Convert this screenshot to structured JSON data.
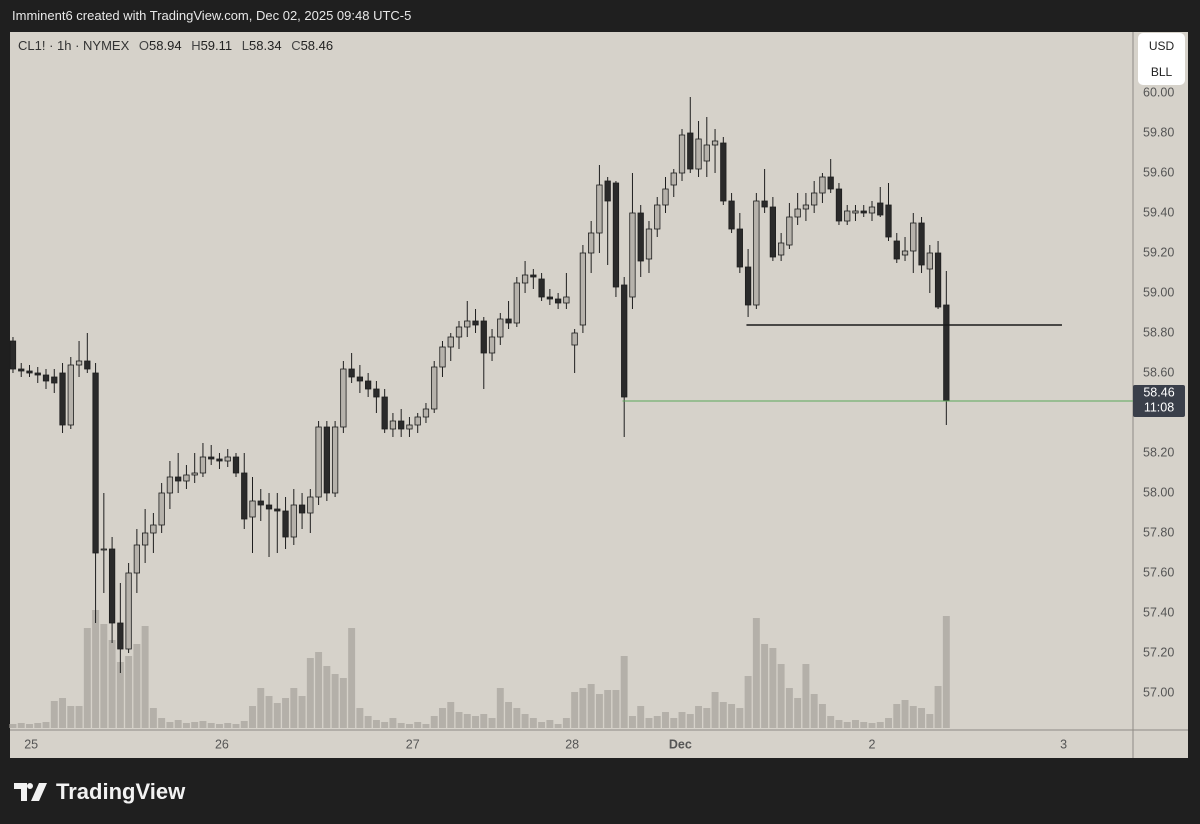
{
  "header": {
    "text": "Imminent6 created with TradingView.com, Dec 02, 2025 09:48 UTC-5"
  },
  "footer": {
    "logo": "TradingView"
  },
  "chart_data": {
    "type": "candlestick",
    "symbol": "CL1! · 1h · NYMEX",
    "legend": {
      "labels": [
        "O",
        "H",
        "L",
        "C"
      ],
      "values": [
        58.94,
        59.11,
        58.34,
        58.46
      ]
    },
    "currency": "USD",
    "unit": "BLL",
    "countdown": "11:08",
    "candles": [
      [
        58.76,
        58.78,
        58.6,
        58.62
      ],
      [
        58.62,
        58.65,
        58.58,
        58.61
      ],
      [
        58.61,
        58.64,
        58.58,
        58.6
      ],
      [
        58.6,
        58.63,
        58.55,
        58.59
      ],
      [
        58.59,
        58.62,
        58.52,
        58.56
      ],
      [
        58.58,
        58.62,
        58.5,
        58.55
      ],
      [
        58.6,
        58.65,
        58.3,
        58.34
      ],
      [
        58.34,
        58.68,
        58.32,
        58.64
      ],
      [
        58.64,
        58.76,
        58.58,
        58.66
      ],
      [
        58.66,
        58.8,
        58.6,
        58.62
      ],
      [
        58.6,
        58.65,
        57.35,
        57.7
      ],
      [
        57.72,
        58.0,
        57.5,
        57.72
      ],
      [
        57.72,
        57.78,
        57.25,
        57.35
      ],
      [
        57.35,
        57.55,
        57.1,
        57.22
      ],
      [
        57.22,
        57.65,
        57.2,
        57.6
      ],
      [
        57.6,
        57.82,
        57.5,
        57.74
      ],
      [
        57.74,
        57.92,
        57.65,
        57.8
      ],
      [
        57.8,
        57.9,
        57.7,
        57.84
      ],
      [
        57.84,
        58.05,
        57.8,
        58.0
      ],
      [
        58.0,
        58.16,
        57.92,
        58.08
      ],
      [
        58.08,
        58.2,
        58.0,
        58.06
      ],
      [
        58.06,
        58.14,
        58.02,
        58.09
      ],
      [
        58.09,
        58.2,
        58.05,
        58.1
      ],
      [
        58.1,
        58.25,
        58.08,
        58.18
      ],
      [
        58.18,
        58.24,
        58.14,
        58.17
      ],
      [
        58.17,
        58.2,
        58.12,
        58.16
      ],
      [
        58.16,
        58.22,
        58.13,
        58.18
      ],
      [
        58.18,
        58.2,
        58.08,
        58.1
      ],
      [
        58.1,
        58.2,
        57.82,
        57.87
      ],
      [
        57.88,
        58.08,
        57.7,
        57.96
      ],
      [
        57.96,
        58.02,
        57.86,
        57.94
      ],
      [
        57.94,
        58.0,
        57.68,
        57.92
      ],
      [
        57.92,
        58.0,
        57.7,
        57.91
      ],
      [
        57.91,
        57.98,
        57.72,
        57.78
      ],
      [
        57.78,
        58.02,
        57.74,
        57.94
      ],
      [
        57.94,
        58.0,
        57.82,
        57.9
      ],
      [
        57.9,
        58.02,
        57.8,
        57.98
      ],
      [
        57.98,
        58.36,
        57.94,
        58.33
      ],
      [
        58.33,
        58.36,
        57.96,
        58.0
      ],
      [
        58.0,
        58.36,
        57.98,
        58.33
      ],
      [
        58.33,
        58.66,
        58.3,
        58.62
      ],
      [
        58.62,
        58.7,
        58.55,
        58.58
      ],
      [
        58.58,
        58.64,
        58.5,
        58.56
      ],
      [
        58.56,
        58.6,
        58.48,
        58.52
      ],
      [
        58.52,
        58.56,
        58.4,
        58.48
      ],
      [
        58.48,
        58.52,
        58.3,
        58.32
      ],
      [
        58.32,
        58.4,
        58.28,
        58.36
      ],
      [
        58.36,
        58.42,
        58.28,
        58.32
      ],
      [
        58.32,
        58.38,
        58.28,
        58.34
      ],
      [
        58.34,
        58.4,
        58.3,
        58.38
      ],
      [
        58.38,
        58.45,
        58.35,
        58.42
      ],
      [
        58.42,
        58.66,
        58.4,
        58.63
      ],
      [
        58.63,
        58.76,
        58.58,
        58.73
      ],
      [
        58.73,
        58.8,
        58.66,
        58.78
      ],
      [
        58.78,
        58.86,
        58.72,
        58.83
      ],
      [
        58.83,
        58.96,
        58.78,
        58.86
      ],
      [
        58.86,
        58.92,
        58.8,
        58.84
      ],
      [
        58.86,
        58.88,
        58.52,
        58.7
      ],
      [
        58.7,
        58.82,
        58.66,
        58.78
      ],
      [
        58.78,
        58.9,
        58.74,
        58.87
      ],
      [
        58.87,
        58.96,
        58.82,
        58.85
      ],
      [
        58.85,
        59.08,
        58.83,
        59.05
      ],
      [
        59.05,
        59.16,
        59.0,
        59.09
      ],
      [
        59.09,
        59.12,
        59.02,
        59.08
      ],
      [
        59.07,
        59.1,
        58.96,
        58.98
      ],
      [
        58.98,
        59.02,
        58.94,
        58.97
      ],
      [
        58.97,
        59.0,
        58.92,
        58.95
      ],
      [
        58.95,
        59.1,
        58.92,
        58.98
      ],
      [
        58.74,
        58.82,
        58.6,
        58.8
      ],
      [
        58.84,
        59.24,
        58.8,
        59.2
      ],
      [
        59.2,
        59.36,
        59.1,
        59.3
      ],
      [
        59.3,
        59.64,
        59.2,
        59.54
      ],
      [
        59.56,
        59.58,
        59.14,
        59.46
      ],
      [
        59.55,
        59.56,
        58.98,
        59.03
      ],
      [
        59.04,
        59.08,
        58.28,
        58.48
      ],
      [
        58.98,
        59.6,
        58.92,
        59.4
      ],
      [
        59.4,
        59.44,
        59.08,
        59.16
      ],
      [
        59.17,
        59.36,
        59.1,
        59.32
      ],
      [
        59.32,
        59.48,
        59.28,
        59.44
      ],
      [
        59.44,
        59.58,
        59.4,
        59.52
      ],
      [
        59.54,
        59.62,
        59.48,
        59.6
      ],
      [
        59.6,
        59.82,
        59.56,
        59.79
      ],
      [
        59.8,
        59.98,
        59.6,
        59.62
      ],
      [
        59.62,
        59.86,
        59.58,
        59.77
      ],
      [
        59.66,
        59.88,
        59.58,
        59.74
      ],
      [
        59.74,
        59.82,
        59.6,
        59.76
      ],
      [
        59.75,
        59.78,
        59.44,
        59.46
      ],
      [
        59.46,
        59.5,
        59.3,
        59.32
      ],
      [
        59.32,
        59.4,
        59.1,
        59.13
      ],
      [
        59.13,
        59.22,
        58.88,
        58.94
      ],
      [
        58.94,
        59.5,
        58.92,
        59.46
      ],
      [
        59.46,
        59.62,
        59.4,
        59.43
      ],
      [
        59.43,
        59.48,
        59.16,
        59.18
      ],
      [
        59.19,
        59.3,
        59.16,
        59.25
      ],
      [
        59.24,
        59.45,
        59.22,
        59.38
      ],
      [
        59.38,
        59.5,
        59.34,
        59.42
      ],
      [
        59.42,
        59.5,
        59.36,
        59.44
      ],
      [
        59.44,
        59.56,
        59.4,
        59.5
      ],
      [
        59.5,
        59.6,
        59.45,
        59.58
      ],
      [
        59.58,
        59.67,
        59.5,
        59.52
      ],
      [
        59.52,
        59.55,
        59.34,
        59.36
      ],
      [
        59.36,
        59.44,
        59.34,
        59.41
      ],
      [
        59.4,
        59.44,
        59.36,
        59.41
      ],
      [
        59.41,
        59.44,
        59.38,
        59.4
      ],
      [
        59.4,
        59.46,
        59.36,
        59.43
      ],
      [
        59.45,
        59.53,
        59.38,
        59.39
      ],
      [
        59.44,
        59.55,
        59.26,
        59.28
      ],
      [
        59.26,
        59.3,
        59.15,
        59.17
      ],
      [
        59.19,
        59.28,
        59.16,
        59.21
      ],
      [
        59.21,
        59.4,
        59.1,
        59.35
      ],
      [
        59.35,
        59.38,
        59.1,
        59.14
      ],
      [
        59.12,
        59.24,
        59.0,
        59.2
      ],
      [
        59.2,
        59.26,
        58.92,
        58.93
      ],
      [
        58.94,
        59.11,
        58.34,
        58.46
      ]
    ],
    "volume": [
      4,
      5,
      4,
      5,
      6,
      27,
      30,
      22,
      22,
      100,
      118,
      104,
      88,
      66,
      72,
      84,
      102,
      20,
      10,
      6,
      8,
      5,
      6,
      7,
      5,
      4,
      5,
      4,
      7,
      22,
      40,
      32,
      25,
      30,
      40,
      32,
      70,
      76,
      62,
      54,
      50,
      100,
      20,
      12,
      8,
      6,
      10,
      5,
      4,
      6,
      4,
      12,
      20,
      26,
      16,
      14,
      12,
      14,
      10,
      40,
      26,
      20,
      14,
      10,
      6,
      8,
      4,
      10,
      36,
      40,
      44,
      34,
      38,
      38,
      72,
      12,
      22,
      10,
      12,
      16,
      10,
      16,
      14,
      22,
      20,
      36,
      26,
      24,
      20,
      52,
      110,
      84,
      80,
      64,
      40,
      30,
      64,
      34,
      24,
      12,
      8,
      6,
      8,
      6,
      5,
      6,
      10,
      24,
      28,
      22,
      20,
      14,
      42,
      112
    ],
    "vlim": [
      0,
      120
    ],
    "colors": {
      "up": "#b6b2ab",
      "down": "#2a2a2a",
      "wick": "#1e1e1e",
      "volume": "#b4b0a9",
      "background": "#d6d2ca"
    },
    "xlim": [
      -0.36,
      135.6
    ],
    "xticks": [
      {
        "value": 2.2,
        "label": "25"
      },
      {
        "value": 25.3,
        "label": "26"
      },
      {
        "value": 48.4,
        "label": "27"
      },
      {
        "value": 67.7,
        "label": "28"
      },
      {
        "value": 80.8,
        "label": "Dec",
        "bold": true
      },
      {
        "value": 104.0,
        "label": "2"
      },
      {
        "value": 127.2,
        "label": "3"
      }
    ],
    "ylim": [
      56.815,
      60.305
    ],
    "yticks": [
      {
        "value": 57.0,
        "label": "57.00"
      },
      {
        "value": 57.2,
        "label": "57.20"
      },
      {
        "value": 57.4,
        "label": "57.40"
      },
      {
        "value": 57.6,
        "label": "57.60"
      },
      {
        "value": 57.8,
        "label": "57.80"
      },
      {
        "value": 58.0,
        "label": "58.00"
      },
      {
        "value": 58.2,
        "label": "58.20"
      },
      {
        "value": 58.6,
        "label": "58.60"
      },
      {
        "value": 58.8,
        "label": "58.80"
      },
      {
        "value": 59.0,
        "label": "59.00"
      },
      {
        "value": 59.2,
        "label": "59.20"
      },
      {
        "value": 59.4,
        "label": "59.40"
      },
      {
        "value": 59.6,
        "label": "59.60"
      },
      {
        "value": 59.8,
        "label": "59.80"
      },
      {
        "value": 60.0,
        "label": "60.00"
      }
    ],
    "levels": [
      {
        "value": 58.84,
        "x": [
          88.8,
          127.0
        ],
        "color": "#1a1a1a"
      }
    ],
    "last_price_line": {
      "start": 73.8,
      "color": "#5aa85a"
    }
  }
}
